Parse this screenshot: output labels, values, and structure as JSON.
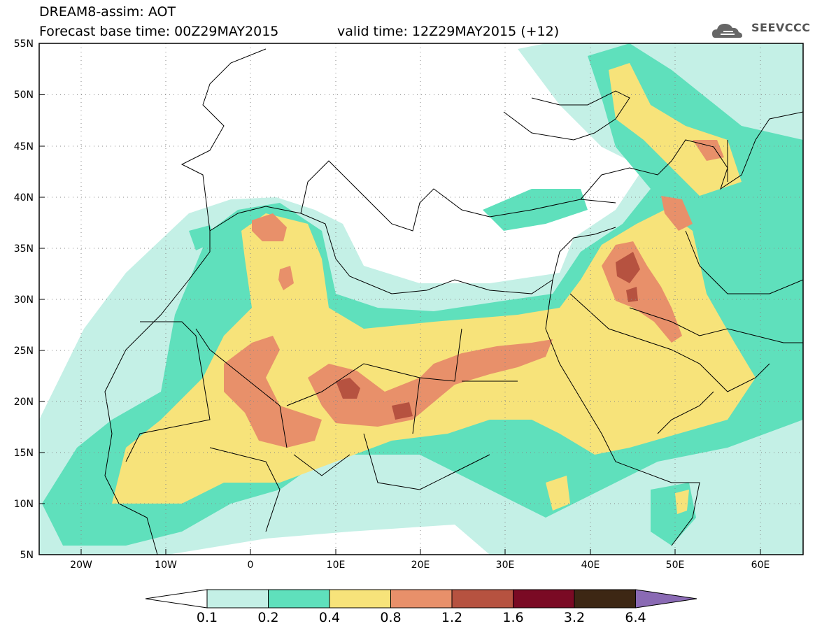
{
  "header": {
    "title": "DREAM8-assim: AOT",
    "base_time": "Forecast base time: 00Z29MAY2015",
    "valid_time": "valid time: 12Z29MAY2015 (+12)",
    "logo_text": "SEEVCCC"
  },
  "map": {
    "lat_labels": [
      "55N",
      "50N",
      "45N",
      "40N",
      "35N",
      "30N",
      "25N",
      "20N",
      "15N",
      "10N",
      "5N"
    ],
    "lon_labels": [
      "20W",
      "10W",
      "0",
      "10E",
      "20E",
      "30E",
      "40E",
      "50E",
      "60E"
    ],
    "lat_range": [
      5,
      55
    ],
    "lon_range": [
      -25,
      65
    ],
    "grid": "dotted"
  },
  "colorbar": {
    "labels": [
      "0.1",
      "0.2",
      "0.4",
      "0.8",
      "1.2",
      "1.6",
      "3.2",
      "6.4"
    ],
    "colors": [
      "#ffffff",
      "#c4f0e6",
      "#5fe0bc",
      "#f7e37a",
      "#e8906a",
      "#b65240",
      "#7a0a24",
      "#3d2714",
      "#8a6ab4"
    ]
  }
}
